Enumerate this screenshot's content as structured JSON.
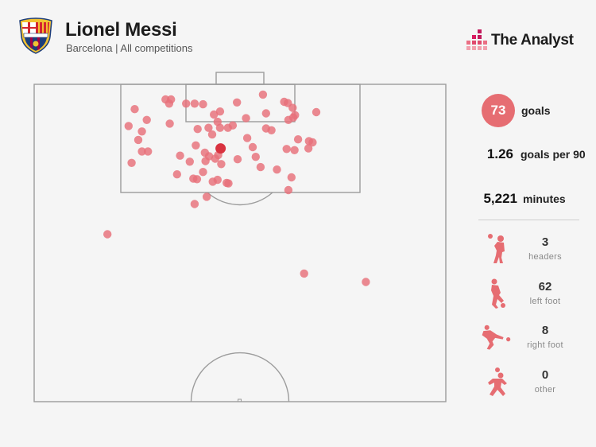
{
  "header": {
    "player_name": "Lionel Messi",
    "subtitle": "Barcelona | All competitions",
    "brand": "The Analyst",
    "crest_letters": "FCB"
  },
  "stats": {
    "goals_value": "73",
    "goals_label": "goals",
    "per90_value": "1.26",
    "per90_label": "goals per 90",
    "minutes_value": "5,221",
    "minutes_label": "minutes"
  },
  "body_parts": [
    {
      "value": "3",
      "label": "headers",
      "icon": "header-player-icon"
    },
    {
      "value": "62",
      "label": "left foot",
      "icon": "left-foot-player-icon"
    },
    {
      "value": "8",
      "label": "right foot",
      "icon": "right-foot-player-icon"
    },
    {
      "value": "0",
      "label": "other",
      "icon": "other-player-icon"
    }
  ],
  "colors": {
    "accent": "#e66d72",
    "shot_fill": "#e8707a",
    "average_marker": "#d93340",
    "pitch_line": "#9c9c9c",
    "background": "#f5f5f5"
  },
  "chart_data": {
    "type": "scatter",
    "title": "",
    "xlabel": "",
    "ylabel": "",
    "coordinate_system": "pitch units: x = distance from goal line (0-52.5), y = lateral position (0-68, goal centre at 34)",
    "x_range": [
      0,
      52.5
    ],
    "y_range": [
      0,
      68
    ],
    "series": [
      {
        "values": [
          {
            "x": 1.7,
            "y": 37.8
          },
          {
            "x": 2.5,
            "y": 21.7
          },
          {
            "x": 2.5,
            "y": 22.6
          },
          {
            "x": 3.1,
            "y": 41.9
          },
          {
            "x": 2.9,
            "y": 41.3
          },
          {
            "x": 3.2,
            "y": 22.3
          },
          {
            "x": 3.2,
            "y": 25.1
          },
          {
            "x": 3.2,
            "y": 26.5
          },
          {
            "x": 3.3,
            "y": 27.9
          },
          {
            "x": 3.9,
            "y": 42.7
          },
          {
            "x": 4.1,
            "y": 16.6
          },
          {
            "x": 4.5,
            "y": 30.7
          },
          {
            "x": 4.6,
            "y": 46.6
          },
          {
            "x": 5.0,
            "y": 29.7
          },
          {
            "x": 5.1,
            "y": 43.1
          },
          {
            "x": 5.5,
            "y": 42.8
          },
          {
            "x": 5.9,
            "y": 42.0
          },
          {
            "x": 5.9,
            "y": 18.6
          },
          {
            "x": 6.2,
            "y": 30.3
          },
          {
            "x": 6.5,
            "y": 22.4
          },
          {
            "x": 6.9,
            "y": 15.6
          },
          {
            "x": 7.2,
            "y": 28.8
          },
          {
            "x": 7.2,
            "y": 30.7
          },
          {
            "x": 7.2,
            "y": 32.0
          },
          {
            "x": 7.3,
            "y": 38.3
          },
          {
            "x": 7.4,
            "y": 27.0
          },
          {
            "x": 7.8,
            "y": 17.8
          },
          {
            "x": 8.3,
            "y": 29.4
          },
          {
            "x": 9.2,
            "y": 17.2
          },
          {
            "x": 9.1,
            "y": 43.6
          },
          {
            "x": 9.4,
            "y": 45.4
          },
          {
            "x": 9.6,
            "y": 46.0
          },
          {
            "x": 10.1,
            "y": 26.7
          },
          {
            "x": 10.7,
            "y": 41.7
          },
          {
            "x": 10.6,
            "y": 45.3
          },
          {
            "x": 10.9,
            "y": 43.0
          },
          {
            "x": 11.1,
            "y": 17.8
          },
          {
            "x": 11.1,
            "y": 18.8
          },
          {
            "x": 11.3,
            "y": 28.2
          },
          {
            "x": 11.7,
            "y": 30.4
          },
          {
            "x": 11.8,
            "y": 24.1
          },
          {
            "x": 11.9,
            "y": 28.9
          },
          {
            "x": 12.7,
            "y": 28.3
          },
          {
            "x": 12.8,
            "y": 25.7
          },
          {
            "x": 12.3,
            "y": 29.9
          },
          {
            "x": 13.0,
            "y": 16.1
          },
          {
            "x": 13.2,
            "y": 30.9
          },
          {
            "x": 13.7,
            "y": 37.4
          },
          {
            "x": 14.1,
            "y": 40.1
          },
          {
            "x": 14.5,
            "y": 27.9
          },
          {
            "x": 14.9,
            "y": 23.6
          },
          {
            "x": 15.4,
            "y": 42.5
          },
          {
            "x": 15.6,
            "y": 26.3
          },
          {
            "x": 15.7,
            "y": 26.9
          },
          {
            "x": 15.8,
            "y": 30.3
          },
          {
            "x": 16.1,
            "y": 29.5
          },
          {
            "x": 16.3,
            "y": 31.8
          },
          {
            "x": 16.4,
            "y": 32.1
          },
          {
            "x": 17.5,
            "y": 42.0
          },
          {
            "x": 18.6,
            "y": 28.5
          },
          {
            "x": 19.8,
            "y": 26.5
          },
          {
            "x": 24.8,
            "y": 12.1
          },
          {
            "x": 31.3,
            "y": 44.6
          },
          {
            "x": 32.7,
            "y": 54.8
          },
          {
            "x": 12.0,
            "y": 36.6
          },
          {
            "x": 6.8,
            "y": 32.8
          },
          {
            "x": 4.8,
            "y": 38.3
          },
          {
            "x": 8.9,
            "y": 35.2
          },
          {
            "x": 12.4,
            "y": 33.6
          },
          {
            "x": 3.0,
            "y": 33.5
          },
          {
            "x": 10.4,
            "y": 36.1
          },
          {
            "x": 7.6,
            "y": 39.2
          },
          {
            "x": 5.6,
            "y": 35.0
          }
        ]
      }
    ],
    "average_position": {
      "x": 10.6,
      "y": 30.8
    }
  }
}
